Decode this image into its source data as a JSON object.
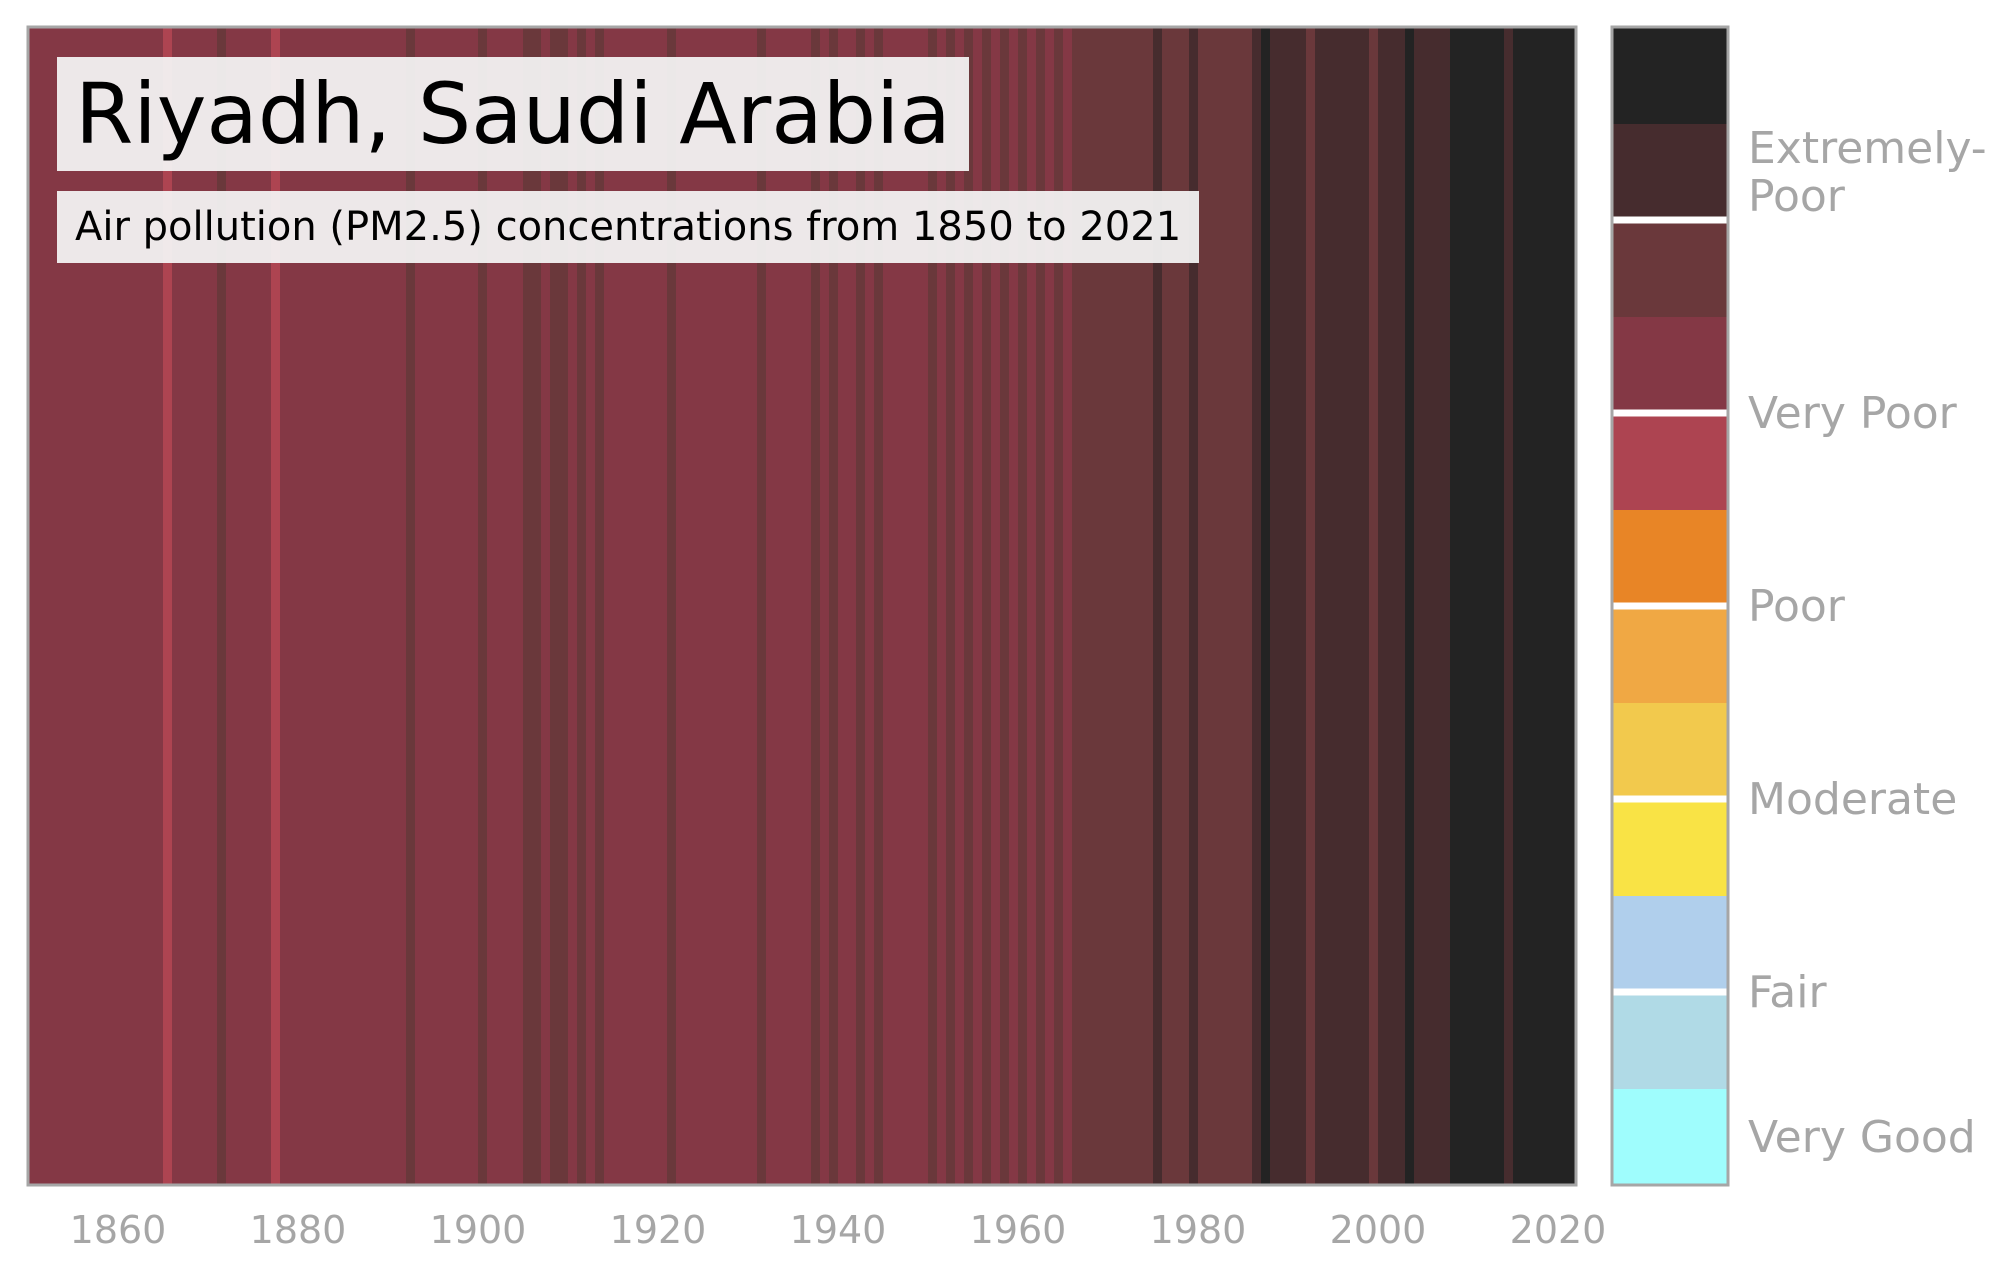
{
  "chart_data": {
    "type": "heatmap",
    "title": "Riyadh, Saudi Arabia",
    "subtitle": "Air pollution (PM2.5) concentrations from 1850 to 2021",
    "xlabel": "",
    "ylabel": "",
    "x_start": 1850,
    "x_end": 2022,
    "x_ticks": [
      "1860",
      "1880",
      "1900",
      "1920",
      "1940",
      "1960",
      "1980",
      "2000",
      "2020"
    ],
    "grid": false,
    "legend_position": "right",
    "level_colors": [
      "#9ffdfd",
      "#b0dae6",
      "#b0cfec",
      "#f9e345",
      "#f2c94d",
      "#f0a844",
      "#e88526",
      "#ad4451",
      "#843845",
      "#6a383b",
      "#462c2e",
      "#232323"
    ],
    "legend_labels": [
      "Very Good",
      "Fair",
      "Moderate",
      "Poor",
      "Very Poor",
      "Extremely-\nPoor"
    ],
    "years": [
      1850,
      1851,
      1852,
      1853,
      1854,
      1855,
      1856,
      1857,
      1858,
      1859,
      1860,
      1861,
      1862,
      1863,
      1864,
      1865,
      1866,
      1867,
      1868,
      1869,
      1870,
      1871,
      1872,
      1873,
      1874,
      1875,
      1876,
      1877,
      1878,
      1879,
      1880,
      1881,
      1882,
      1883,
      1884,
      1885,
      1886,
      1887,
      1888,
      1889,
      1890,
      1891,
      1892,
      1893,
      1894,
      1895,
      1896,
      1897,
      1898,
      1899,
      1900,
      1901,
      1902,
      1903,
      1904,
      1905,
      1906,
      1907,
      1908,
      1909,
      1910,
      1911,
      1912,
      1913,
      1914,
      1915,
      1916,
      1917,
      1918,
      1919,
      1920,
      1921,
      1922,
      1923,
      1924,
      1925,
      1926,
      1927,
      1928,
      1929,
      1930,
      1931,
      1932,
      1933,
      1934,
      1935,
      1936,
      1937,
      1938,
      1939,
      1940,
      1941,
      1942,
      1943,
      1944,
      1945,
      1946,
      1947,
      1948,
      1949,
      1950,
      1951,
      1952,
      1953,
      1954,
      1955,
      1956,
      1957,
      1958,
      1959,
      1960,
      1961,
      1962,
      1963,
      1964,
      1965,
      1966,
      1967,
      1968,
      1969,
      1970,
      1971,
      1972,
      1973,
      1974,
      1975,
      1976,
      1977,
      1978,
      1979,
      1980,
      1981,
      1982,
      1983,
      1984,
      1985,
      1986,
      1987,
      1988,
      1989,
      1990,
      1991,
      1992,
      1993,
      1994,
      1995,
      1996,
      1997,
      1998,
      1999,
      2000,
      2001,
      2002,
      2003,
      2004,
      2005,
      2006,
      2007,
      2008,
      2009,
      2010,
      2011,
      2012,
      2013,
      2014,
      2015,
      2016,
      2017,
      2018,
      2019,
      2020,
      2021
    ],
    "levels": [
      8,
      8,
      8,
      8,
      8,
      8,
      8,
      8,
      8,
      8,
      8,
      8,
      8,
      8,
      8,
      7,
      8,
      8,
      8,
      8,
      8,
      9,
      8,
      8,
      8,
      8,
      8,
      7,
      8,
      8,
      8,
      8,
      8,
      8,
      8,
      8,
      8,
      8,
      8,
      8,
      8,
      8,
      9,
      8,
      8,
      8,
      8,
      8,
      8,
      8,
      9,
      8,
      8,
      8,
      8,
      9,
      9,
      8,
      9,
      9,
      8,
      9,
      8,
      9,
      8,
      8,
      8,
      8,
      8,
      8,
      8,
      9,
      8,
      8,
      8,
      8,
      8,
      8,
      8,
      8,
      8,
      9,
      8,
      8,
      8,
      8,
      8,
      9,
      8,
      9,
      8,
      8,
      9,
      8,
      9,
      8,
      8,
      8,
      8,
      8,
      9,
      8,
      9,
      8,
      9,
      8,
      9,
      8,
      9,
      8,
      9,
      8,
      9,
      8,
      9,
      8,
      9,
      9,
      9,
      9,
      9,
      9,
      9,
      9,
      9,
      10,
      9,
      9,
      9,
      10,
      9,
      9,
      9,
      9,
      9,
      9,
      10,
      11,
      10,
      10,
      10,
      10,
      9,
      10,
      10,
      10,
      10,
      10,
      10,
      9,
      10,
      10,
      10,
      11,
      10,
      10,
      10,
      10,
      11,
      11,
      11,
      11,
      11,
      11,
      10,
      11,
      11,
      11,
      11,
      11,
      11,
      11
    ]
  }
}
